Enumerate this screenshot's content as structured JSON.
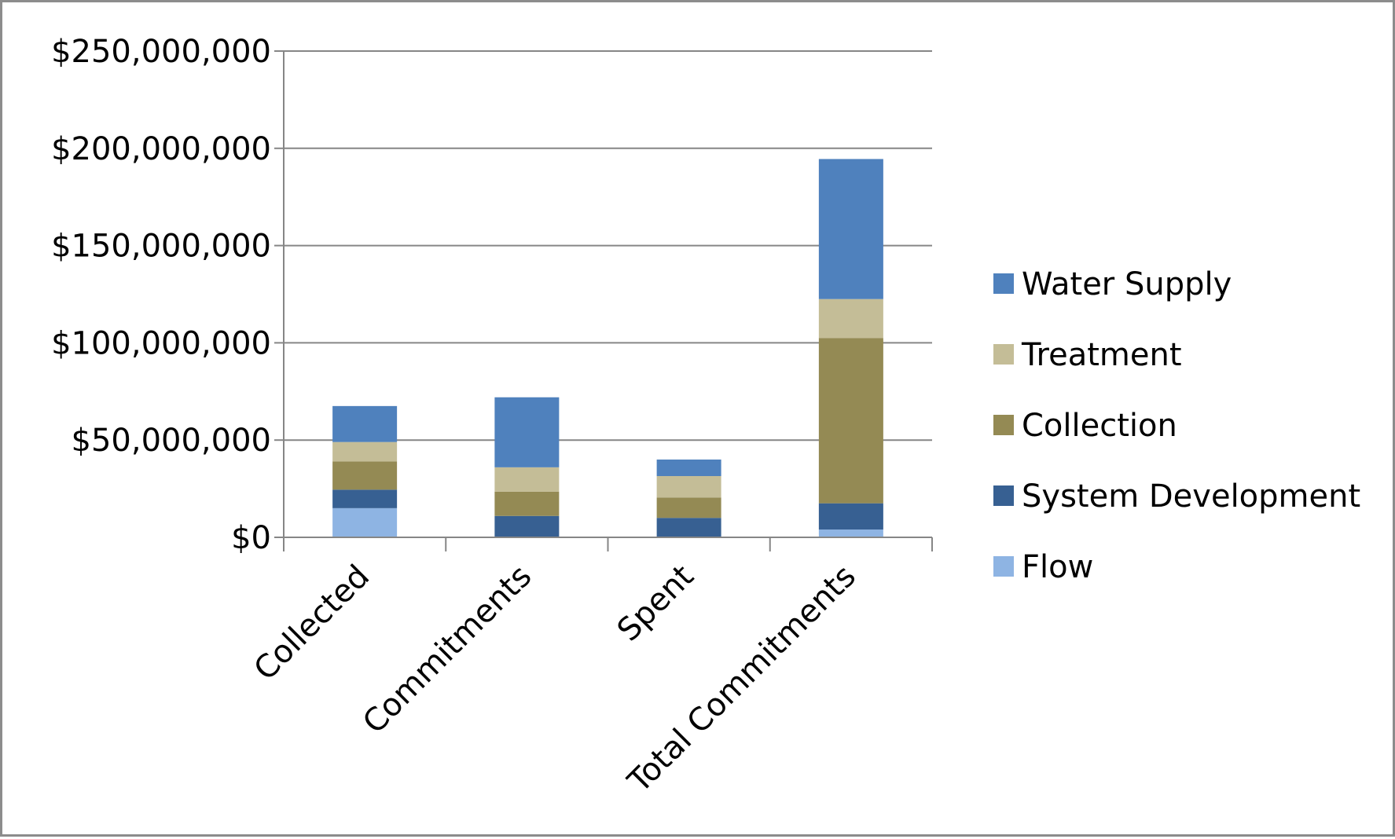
{
  "chart_data": {
    "type": "bar",
    "stacked": true,
    "title": "",
    "xlabel": "",
    "ylabel": "",
    "categories": [
      "Collected",
      "Commitments",
      "Spent",
      "Total Commitments"
    ],
    "series": [
      {
        "name": "Flow",
        "color": "#8EB4E3",
        "values": [
          15000000,
          0,
          0,
          4000000
        ]
      },
      {
        "name": "System Development",
        "color": "#376092",
        "values": [
          9500000,
          11000000,
          10000000,
          13500000
        ]
      },
      {
        "name": "Collection",
        "color": "#948A54",
        "values": [
          14500000,
          12500000,
          10500000,
          85000000
        ]
      },
      {
        "name": "Treatment",
        "color": "#C4BD97",
        "values": [
          10000000,
          12500000,
          11000000,
          20000000
        ]
      },
      {
        "name": "Water Supply",
        "color": "#4F81BD",
        "values": [
          18500000,
          36000000,
          8500000,
          72000000
        ]
      }
    ],
    "ylim": [
      0,
      250000000
    ],
    "yticks": [
      0,
      50000000,
      100000000,
      150000000,
      200000000,
      250000000
    ],
    "ytick_labels": [
      "$0",
      "$50,000,000",
      "$100,000,000",
      "$150,000,000",
      "$200,000,000",
      "$250,000,000"
    ],
    "legend_order": [
      "Water Supply",
      "Treatment",
      "Collection",
      "System Development",
      "Flow"
    ],
    "legend_position": "right",
    "grid": true,
    "gridline_color": "#868686",
    "axis_color": "#868686"
  }
}
